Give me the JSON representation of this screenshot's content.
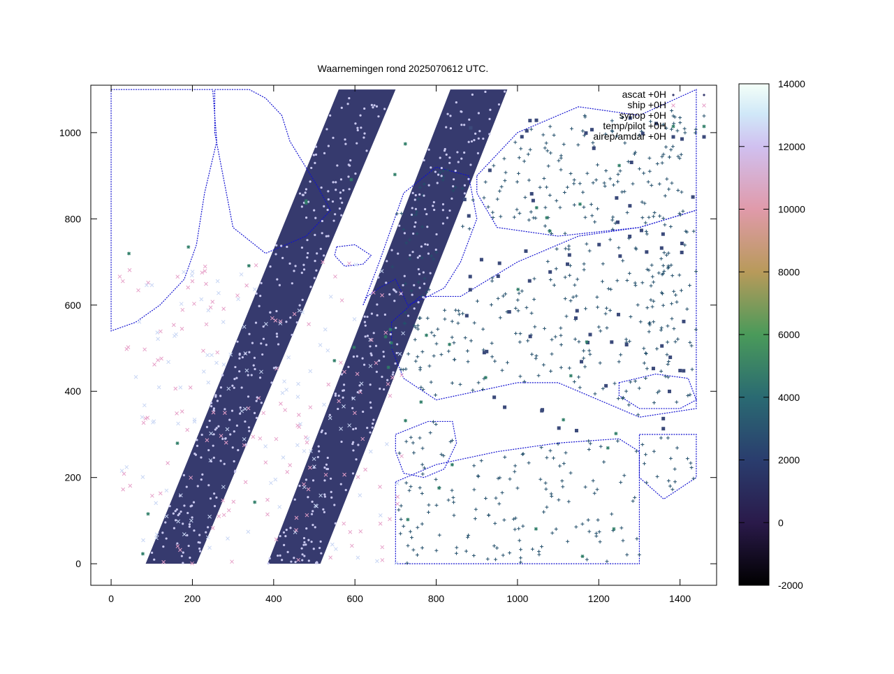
{
  "chart_data": {
    "type": "scatter",
    "title": "Waarnemingen rond 2025070612 UTC.",
    "xlim": [
      -50,
      1490
    ],
    "ylim": [
      -50,
      1110
    ],
    "x_ticks": [
      0,
      200,
      400,
      600,
      800,
      1000,
      1200,
      1400
    ],
    "y_ticks": [
      0,
      200,
      400,
      600,
      800,
      1000
    ],
    "grid": false,
    "legend_position": "top-right",
    "colorbar": {
      "min": -2000,
      "max": 14000,
      "ticks": [
        -2000,
        0,
        2000,
        4000,
        6000,
        8000,
        10000,
        12000,
        14000
      ]
    },
    "series": [
      {
        "name": "ascat +0H",
        "marker": "dot",
        "color": "#363a6e"
      },
      {
        "name": "ship +0H",
        "marker": "cross",
        "color": "#e6a0c8"
      },
      {
        "name": "synop +0H",
        "marker": "plus",
        "color": "#234f6b"
      },
      {
        "name": "temp/pilot +0H",
        "marker": "star",
        "color": "#2f7e68"
      },
      {
        "name": "airep/amdar +0H",
        "marker": "square",
        "color": "#3b4a7a"
      }
    ],
    "swaths": [
      {
        "x": [
          85,
          210,
          700,
          560
        ],
        "y": [
          0,
          0,
          1100,
          1100
        ]
      },
      {
        "x": [
          385,
          515,
          975,
          835
        ],
        "y": [
          0,
          0,
          1100,
          1100
        ]
      }
    ],
    "land": [
      {
        "name": "greenland",
        "x": [
          255,
          340,
          380,
          420,
          440,
          505,
          540,
          480,
          380,
          300,
          255
        ],
        "y": [
          1100,
          1100,
          1080,
          1040,
          980,
          880,
          820,
          760,
          720,
          780,
          1000
        ]
      },
      {
        "name": "canada",
        "x": [
          0,
          250,
          260,
          230,
          210,
          180,
          120,
          60,
          0
        ],
        "y": [
          1100,
          1100,
          980,
          860,
          740,
          660,
          600,
          560,
          540
        ]
      },
      {
        "name": "iceland",
        "x": [
          555,
          600,
          640,
          620,
          575,
          550
        ],
        "y": [
          735,
          740,
          715,
          695,
          690,
          715
        ]
      },
      {
        "name": "scandinavia",
        "x": [
          620,
          660,
          720,
          800,
          880,
          900,
          860,
          820,
          780,
          730,
          700,
          660,
          630
        ],
        "y": [
          600,
          700,
          860,
          920,
          900,
          800,
          700,
          640,
          620,
          600,
          660,
          640,
          620
        ]
      },
      {
        "name": "europe",
        "x": [
          690,
          760,
          860,
          1000,
          1150,
          1300,
          1440,
          1440,
          1300,
          1200,
          1100,
          1000,
          900,
          800,
          720,
          690
        ],
        "y": [
          560,
          620,
          620,
          700,
          760,
          780,
          820,
          360,
          340,
          380,
          420,
          420,
          400,
          380,
          430,
          500
        ]
      },
      {
        "name": "russia-north",
        "x": [
          900,
          1000,
          1150,
          1300,
          1440,
          1440,
          1300,
          1100,
          950,
          900
        ],
        "y": [
          900,
          1000,
          1060,
          1040,
          1100,
          820,
          780,
          760,
          780,
          860
        ]
      },
      {
        "name": "iberia",
        "x": [
          700,
          780,
          840,
          850,
          820,
          770,
          720,
          700
        ],
        "y": [
          300,
          330,
          330,
          280,
          220,
          200,
          210,
          260
        ]
      },
      {
        "name": "north-africa",
        "x": [
          700,
          800,
          950,
          1100,
          1250,
          1300,
          1300,
          700
        ],
        "y": [
          190,
          230,
          260,
          280,
          290,
          260,
          0,
          0
        ]
      },
      {
        "name": "turkey",
        "x": [
          1250,
          1340,
          1420,
          1440,
          1400,
          1300,
          1250
        ],
        "y": [
          420,
          440,
          430,
          380,
          360,
          360,
          390
        ]
      },
      {
        "name": "arabia",
        "x": [
          1300,
          1440,
          1440,
          1360,
          1300
        ],
        "y": [
          300,
          300,
          200,
          150,
          200
        ]
      }
    ],
    "seed": 20250706
  }
}
